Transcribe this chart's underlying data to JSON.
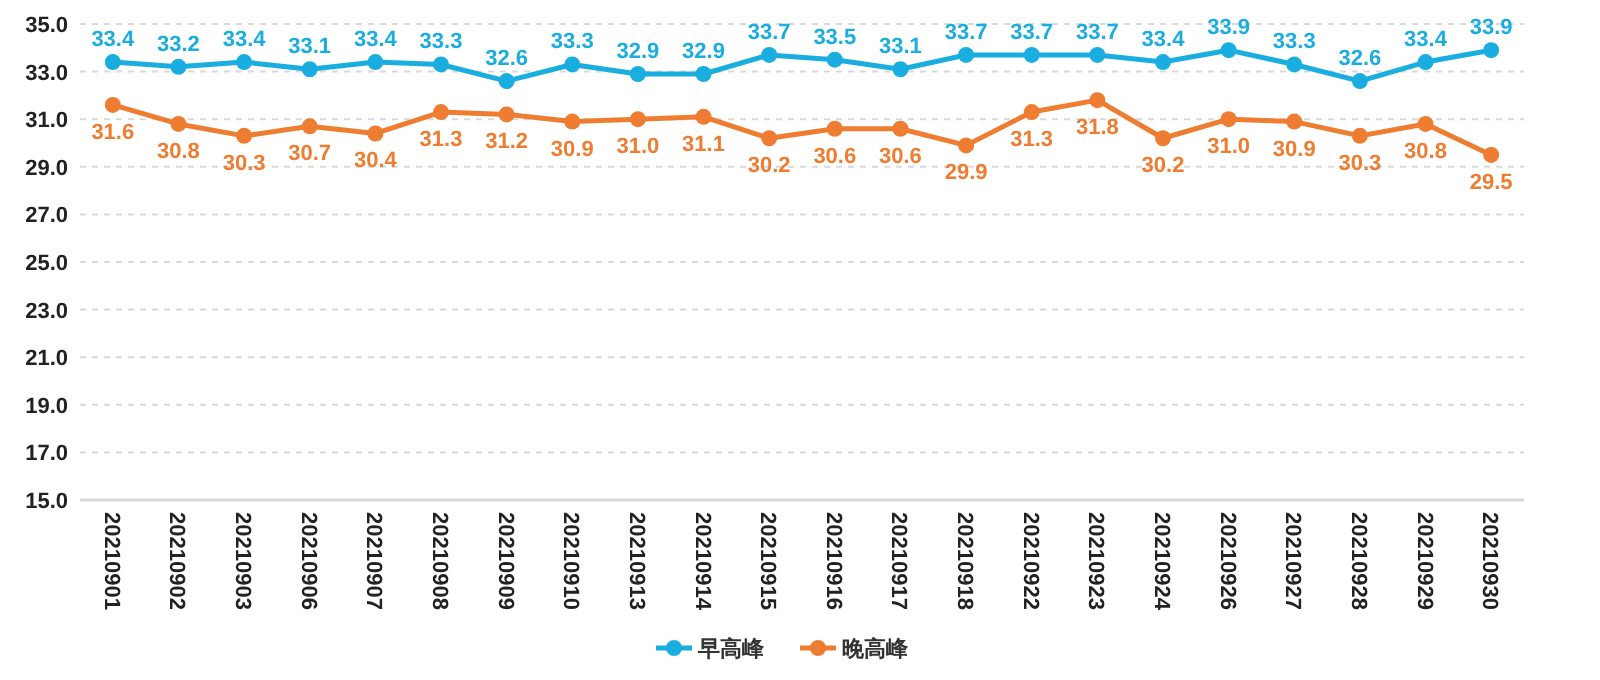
{
  "chart_data": {
    "type": "line",
    "categories": [
      "20210901",
      "20210902",
      "20210903",
      "20210906",
      "20210907",
      "20210908",
      "20210909",
      "20210910",
      "20210913",
      "20210914",
      "20210915",
      "20210916",
      "20210917",
      "20210918",
      "20210922",
      "20210923",
      "20210924",
      "20210926",
      "20210927",
      "20210928",
      "20210929",
      "20210930"
    ],
    "series": [
      {
        "name": "早高峰",
        "color": "#1aaee0",
        "values": [
          33.4,
          33.2,
          33.4,
          33.1,
          33.4,
          33.3,
          32.6,
          33.3,
          32.9,
          32.9,
          33.7,
          33.5,
          33.1,
          33.7,
          33.7,
          33.7,
          33.4,
          33.9,
          33.3,
          32.6,
          33.4,
          33.9
        ],
        "value_labels": [
          "33.4",
          "33.2",
          "33.4",
          "33.1",
          "33.4",
          "33.3",
          "32.6",
          "33.3",
          "32.9",
          "32.9",
          "33.7",
          "33.5",
          "33.1",
          "33.7",
          "33.7",
          "33.7",
          "33.4",
          "33.9",
          "33.3",
          "32.6",
          "33.4",
          "33.9"
        ]
      },
      {
        "name": "晚高峰",
        "color": "#ee7d31",
        "values": [
          31.6,
          30.8,
          30.3,
          30.7,
          30.4,
          31.3,
          31.2,
          30.9,
          31.0,
          31.1,
          30.2,
          30.6,
          30.6,
          29.9,
          31.3,
          31.8,
          30.2,
          31.0,
          30.9,
          30.3,
          30.8,
          29.5
        ],
        "value_labels": [
          "31.6",
          "30.8",
          "30.3",
          "30.7",
          "30.4",
          "31.3",
          "31.2",
          "30.9",
          "31.0",
          "31.1",
          "30.2",
          "30.6",
          "30.6",
          "29.9",
          "31.3",
          "31.8",
          "30.2",
          "31.0",
          "30.9",
          "30.3",
          "30.8",
          "29.5"
        ]
      }
    ],
    "ylim": [
      15,
      35
    ],
    "yticks": [
      {
        "value": 15,
        "label": "15.0"
      },
      {
        "value": 17,
        "label": "17.0"
      },
      {
        "value": 19,
        "label": "19.0"
      },
      {
        "value": 21,
        "label": "21.0"
      },
      {
        "value": 23,
        "label": "23.0"
      },
      {
        "value": 25,
        "label": "25.0"
      },
      {
        "value": 27,
        "label": "27.0"
      },
      {
        "value": 29,
        "label": "29.0"
      },
      {
        "value": 31,
        "label": "31.0"
      },
      {
        "value": 33,
        "label": "33.0"
      },
      {
        "value": 35,
        "label": "35.0"
      }
    ],
    "grid": "y",
    "legend": "bottom",
    "marker": "circle",
    "line_style": "solid"
  }
}
